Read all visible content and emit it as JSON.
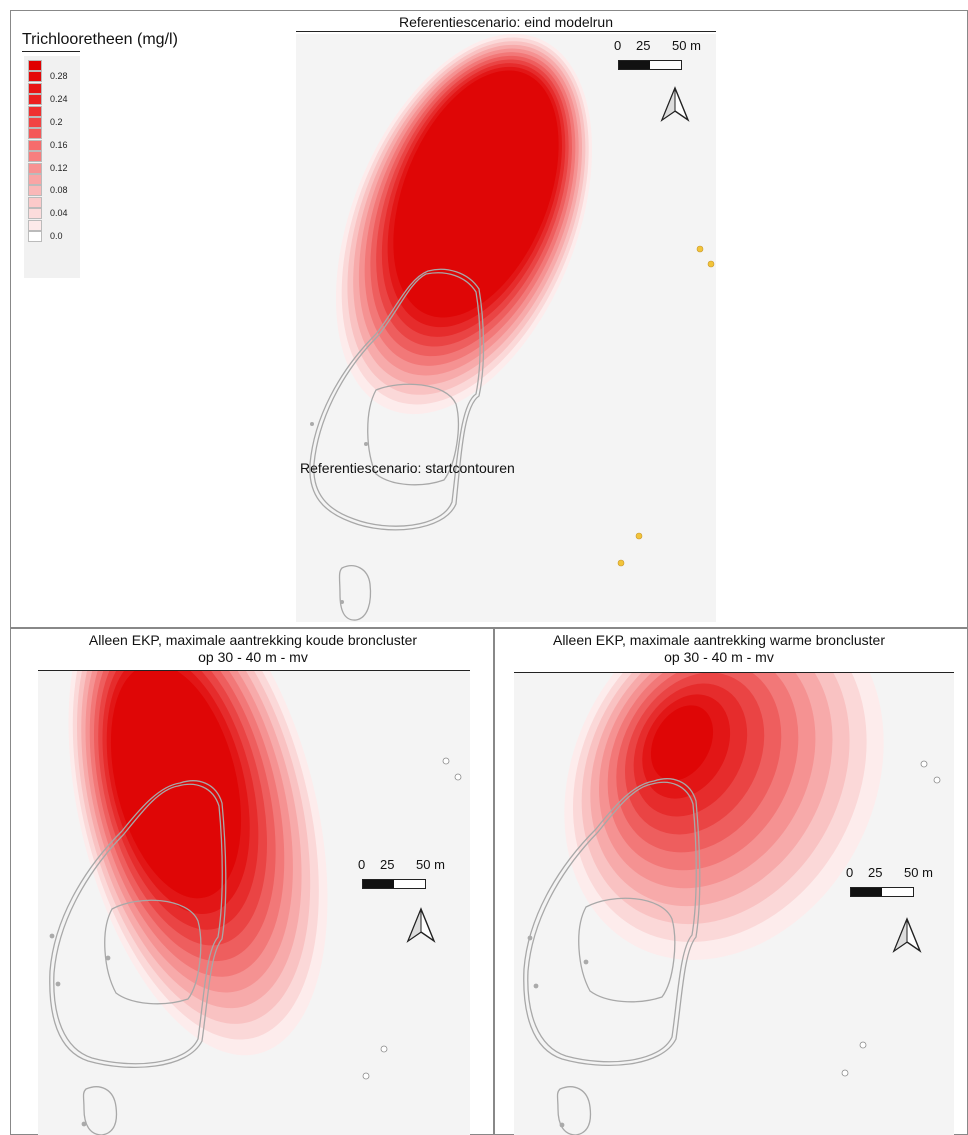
{
  "legend": {
    "title": "Trichlooretheen (mg/l)",
    "items": [
      {
        "label": "",
        "color": "#e00000"
      },
      {
        "label": "0.28",
        "color": "#e40808"
      },
      {
        "label": "",
        "color": "#e81414"
      },
      {
        "label": "0.24",
        "color": "#ec2020"
      },
      {
        "label": "",
        "color": "#ef3030"
      },
      {
        "label": "0.2",
        "color": "#f24444"
      },
      {
        "label": "",
        "color": "#f45858"
      },
      {
        "label": "0.16",
        "color": "#f66c6c"
      },
      {
        "label": "",
        "color": "#f77f7f"
      },
      {
        "label": "0.12",
        "color": "#f89292"
      },
      {
        "label": "",
        "color": "#f9a5a5"
      },
      {
        "label": "0.08",
        "color": "#fab8b8"
      },
      {
        "label": "",
        "color": "#fbcaca"
      },
      {
        "label": "0.04",
        "color": "#fcdcdc"
      },
      {
        "label": "",
        "color": "#fdeaea"
      },
      {
        "label": "0.0",
        "color": "#ffffff"
      }
    ]
  },
  "panels": {
    "top": {
      "title": "Referentiescenario: eind modelrun",
      "inner_label": "Referentiescenario: startcontouren"
    },
    "bottom_left": {
      "title_line1": "Alleen EKP, maximale aantrekking koude broncluster",
      "title_line2": "op 30 - 40 m - mv"
    },
    "bottom_right": {
      "title_line1": "Alleen EKP, maximale aantrekking warme broncluster",
      "title_line2": "op 30 - 40 m - mv"
    }
  },
  "scale_bar": {
    "t0": "0",
    "t1": "25",
    "t2": "50 m"
  },
  "colors": {
    "plume_core": "#e00000",
    "plume_edge": "#fde8e8",
    "map_background": "#f4f4f4",
    "contour_line": "#a8a8a8",
    "well_marker": "#f2c43a"
  }
}
